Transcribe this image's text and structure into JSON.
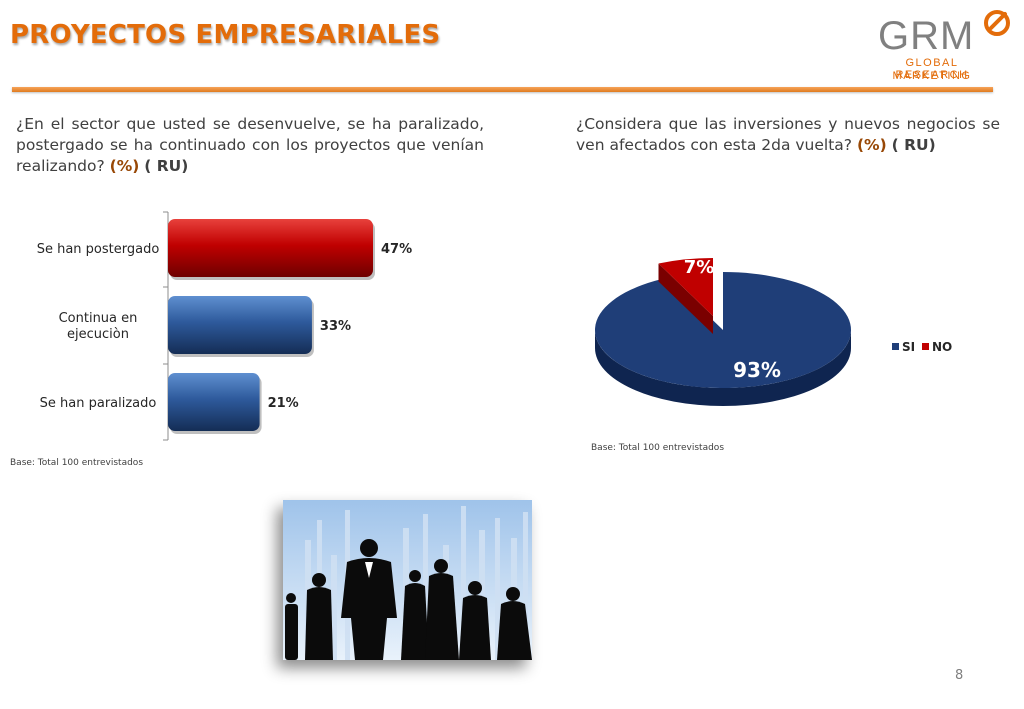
{
  "header": {
    "title": "PROYECTOS EMPRESARIALES",
    "logo_main": "GRM",
    "logo_line1": "GLOBAL RESEARCH",
    "logo_line2": "MARKETING"
  },
  "questions": {
    "left": {
      "text": "¿En el sector que usted se desenvuelve, se ha paralizado, postergado  se ha continuado con los proyectos que venían realizando?",
      "pct": "(%)",
      "ru": "( RU)"
    },
    "right": {
      "text": "¿Considera que las inversiones y nuevos negocios se ven afectados con esta 2da vuelta?",
      "pct": "(%)",
      "ru": "( RU)"
    }
  },
  "bases": {
    "left": "Base: Total  100  entrevistados",
    "right": "Base: Total  100  entrevistados"
  },
  "page_number": "8",
  "colors": {
    "accent": "#e36c0a",
    "bar_red": "#c00000",
    "bar_blue": "#2e5a9c",
    "pie_blue": "#1f3e78",
    "pie_red": "#c00000"
  },
  "chart_data": [
    {
      "type": "bar",
      "orientation": "horizontal",
      "categories": [
        "Se han postergado",
        "Continua en ejecuciòn",
        "Se han paralizado"
      ],
      "values": [
        47,
        33,
        21
      ],
      "value_labels": [
        "47%",
        "33%",
        "21%"
      ],
      "colors": [
        "#c00000",
        "#2e5a9c",
        "#2e5a9c"
      ],
      "xlim": [
        0,
        60
      ]
    },
    {
      "type": "pie",
      "categories": [
        "SI",
        "NO"
      ],
      "values": [
        93,
        7
      ],
      "value_labels": [
        "93%",
        "7%"
      ],
      "colors": [
        "#1f3e78",
        "#c00000"
      ],
      "legend": [
        "SI",
        "NO"
      ],
      "legend_position": "right"
    }
  ]
}
